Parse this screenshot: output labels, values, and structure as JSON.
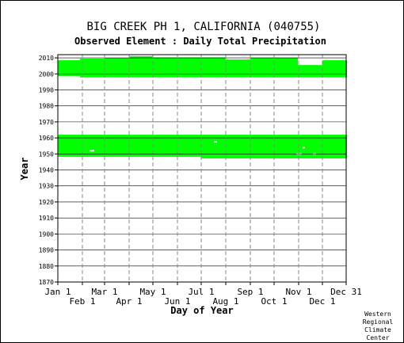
{
  "chart_data": {
    "type": "heatmap",
    "title": "BIG CREEK PH 1, CALIFORNIA   (040755)",
    "subtitle": "Observed Element : Daily Total Precipitation",
    "xlabel": "Day of Year",
    "ylabel": "Year",
    "xlim": [
      1,
      365
    ],
    "ylim": [
      1870,
      2012
    ],
    "x_ticks_upper": [
      {
        "day": 1,
        "label": "Jan 1"
      },
      {
        "day": 60,
        "label": "Mar 1"
      },
      {
        "day": 121,
        "label": "May 1"
      },
      {
        "day": 182,
        "label": "Jul 1"
      },
      {
        "day": 244,
        "label": "Sep 1"
      },
      {
        "day": 305,
        "label": "Nov 1"
      },
      {
        "day": 365,
        "label": "Dec 31"
      }
    ],
    "x_ticks_lower": [
      {
        "day": 32,
        "label": "Feb 1"
      },
      {
        "day": 91,
        "label": "Apr 1"
      },
      {
        "day": 152,
        "label": "Jun 1"
      },
      {
        "day": 213,
        "label": "Aug 1"
      },
      {
        "day": 274,
        "label": "Oct 1"
      },
      {
        "day": 335,
        "label": "Dec 1"
      }
    ],
    "y_ticks": [
      2010,
      2000,
      1990,
      1980,
      1970,
      1960,
      1950,
      1940,
      1930,
      1920,
      1910,
      1900,
      1890,
      1880,
      1870
    ],
    "coverage_color": "#00ff00",
    "grid": true,
    "coverage_segments": [
      {
        "start_day": 1,
        "end_day": 28,
        "start_year": 1998.5,
        "end_year": 2008.5
      },
      {
        "start_day": 29,
        "end_day": 59,
        "start_year": 1997.8,
        "end_year": 2009.5
      },
      {
        "start_day": 60,
        "end_day": 90,
        "start_year": 1997.8,
        "end_year": 2010
      },
      {
        "start_day": 91,
        "end_day": 120,
        "start_year": 1997.8,
        "end_year": 2011
      },
      {
        "start_day": 121,
        "end_day": 212,
        "start_year": 1997.8,
        "end_year": 2010.3
      },
      {
        "start_day": 213,
        "end_day": 243,
        "start_year": 1997.8,
        "end_year": 2009
      },
      {
        "start_day": 244,
        "end_day": 303,
        "start_year": 1997.8,
        "end_year": 2010.2
      },
      {
        "start_day": 304,
        "end_day": 334,
        "start_year": 1997.8,
        "end_year": 2005.5
      },
      {
        "start_day": 335,
        "end_day": 365,
        "start_year": 1997.8,
        "end_year": 2008.5
      },
      {
        "start_day": 1,
        "end_day": 181,
        "start_year": 1948.2,
        "end_year": 1962
      },
      {
        "start_day": 182,
        "end_day": 365,
        "start_year": 1947.2,
        "end_year": 1962
      }
    ],
    "gaps": [
      {
        "start_day": 41,
        "end_day": 46,
        "year": 1952
      },
      {
        "start_day": 198,
        "end_day": 201,
        "year": 1957.5
      },
      {
        "start_day": 302,
        "end_day": 308,
        "year": 1950
      },
      {
        "start_day": 323,
        "end_day": 326,
        "year": 1950
      },
      {
        "start_day": 310,
        "end_day": 312,
        "year": 1954
      }
    ]
  },
  "credit": [
    "Western",
    "Regional",
    "Climate",
    "Center"
  ]
}
